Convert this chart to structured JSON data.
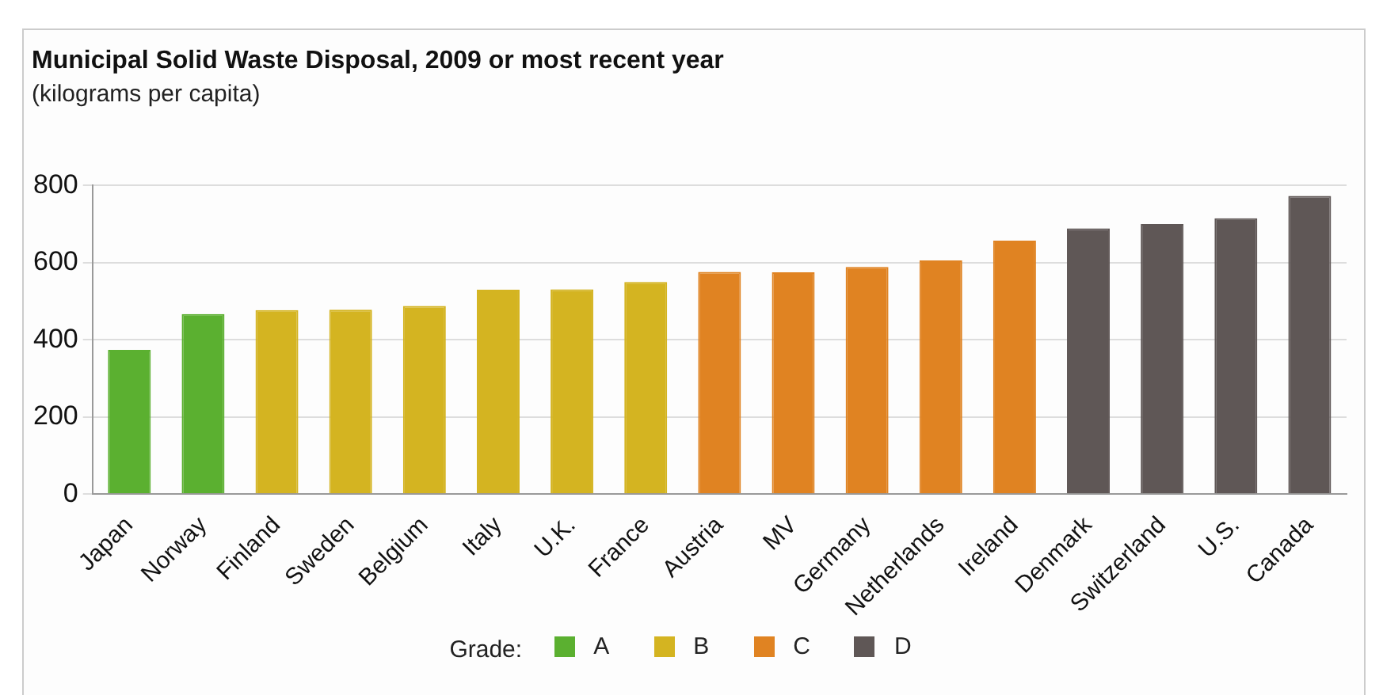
{
  "chart_data": {
    "type": "bar",
    "title": "Municipal Solid Waste Disposal, 2009 or most recent year",
    "subtitle": "(kilograms per capita)",
    "categories": [
      "Japan",
      "Norway",
      "Finland",
      "Sweden",
      "Belgium",
      "Italy",
      "U.K.",
      "France",
      "Austria",
      "MV",
      "Germany",
      "Netherlands",
      "Ireland",
      "Denmark",
      "Switzerland",
      "U.S.",
      "Canada"
    ],
    "legend_title": "Grade:",
    "series": [
      {
        "name": "A",
        "color": "#5bb030",
        "values": [
          374,
          467,
          null,
          null,
          null,
          null,
          null,
          null,
          null,
          null,
          null,
          null,
          null,
          null,
          null,
          null,
          null
        ]
      },
      {
        "name": "B",
        "color": "#d4b421",
        "values": [
          null,
          null,
          477,
          478,
          488,
          530,
          531,
          550,
          null,
          null,
          null,
          null,
          null,
          null,
          null,
          null,
          null
        ]
      },
      {
        "name": "C",
        "color": "#e08322",
        "values": [
          null,
          null,
          null,
          null,
          null,
          null,
          null,
          null,
          576,
          575,
          589,
          606,
          657,
          null,
          null,
          null,
          null
        ]
      },
      {
        "name": "D",
        "color": "#5f5756",
        "values": [
          null,
          null,
          null,
          null,
          null,
          null,
          null,
          null,
          null,
          null,
          null,
          null,
          null,
          689,
          700,
          715,
          773
        ]
      }
    ],
    "ylim": [
      0,
      800
    ],
    "yticks": [
      0,
      200,
      400,
      600,
      800
    ],
    "grid": "y",
    "legend": "bottom"
  }
}
